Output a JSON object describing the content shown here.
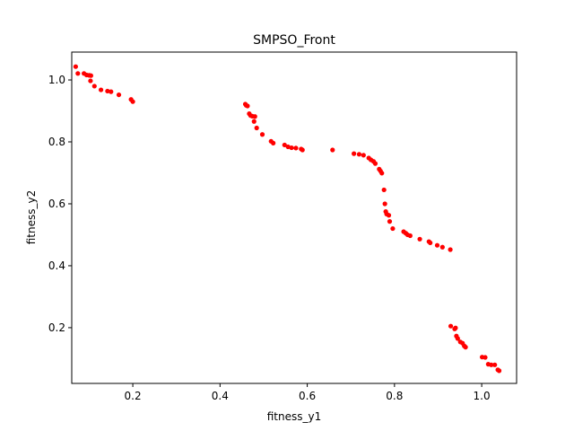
{
  "chart_data": {
    "type": "scatter",
    "title": "SMPSO_Front",
    "xlabel": "fitness_y1",
    "ylabel": "fitness_y2",
    "xlim": [
      0.06,
      1.08
    ],
    "ylim": [
      0.02,
      1.09
    ],
    "grid": false,
    "xticks": [
      0.2,
      0.4,
      0.6,
      0.8,
      1.0
    ],
    "xtick_labels": [
      "0.2",
      "0.4",
      "0.6",
      "0.8",
      "1.0"
    ],
    "yticks": [
      0.2,
      0.4,
      0.6,
      0.8,
      1.0
    ],
    "ytick_labels": [
      "0.2",
      "0.4",
      "0.6",
      "0.8",
      "1.0"
    ],
    "marker_color": "#ff0000",
    "points": [
      [
        0.069,
        1.043
      ],
      [
        0.074,
        1.021
      ],
      [
        0.088,
        1.021
      ],
      [
        0.094,
        1.016
      ],
      [
        0.1,
        1.015
      ],
      [
        0.104,
        1.014
      ],
      [
        0.103,
        0.997
      ],
      [
        0.112,
        0.98
      ],
      [
        0.127,
        0.968
      ],
      [
        0.142,
        0.964
      ],
      [
        0.15,
        0.962
      ],
      [
        0.168,
        0.952
      ],
      [
        0.196,
        0.937
      ],
      [
        0.2,
        0.93
      ],
      [
        0.458,
        0.922
      ],
      [
        0.46,
        0.918
      ],
      [
        0.463,
        0.916
      ],
      [
        0.467,
        0.891
      ],
      [
        0.47,
        0.885
      ],
      [
        0.474,
        0.883
      ],
      [
        0.48,
        0.882
      ],
      [
        0.478,
        0.866
      ],
      [
        0.484,
        0.845
      ],
      [
        0.497,
        0.824
      ],
      [
        0.517,
        0.802
      ],
      [
        0.522,
        0.796
      ],
      [
        0.548,
        0.79
      ],
      [
        0.556,
        0.784
      ],
      [
        0.564,
        0.781
      ],
      [
        0.574,
        0.78
      ],
      [
        0.586,
        0.777
      ],
      [
        0.589,
        0.774
      ],
      [
        0.658,
        0.774
      ],
      [
        0.707,
        0.762
      ],
      [
        0.719,
        0.76
      ],
      [
        0.729,
        0.757
      ],
      [
        0.741,
        0.748
      ],
      [
        0.746,
        0.742
      ],
      [
        0.752,
        0.737
      ],
      [
        0.756,
        0.73
      ],
      [
        0.765,
        0.712
      ],
      [
        0.768,
        0.706
      ],
      [
        0.771,
        0.699
      ],
      [
        0.776,
        0.645
      ],
      [
        0.778,
        0.6
      ],
      [
        0.78,
        0.575
      ],
      [
        0.782,
        0.567
      ],
      [
        0.787,
        0.563
      ],
      [
        0.789,
        0.543
      ],
      [
        0.796,
        0.52
      ],
      [
        0.821,
        0.51
      ],
      [
        0.826,
        0.505
      ],
      [
        0.83,
        0.5
      ],
      [
        0.836,
        0.497
      ],
      [
        0.858,
        0.486
      ],
      [
        0.879,
        0.478
      ],
      [
        0.882,
        0.474
      ],
      [
        0.898,
        0.466
      ],
      [
        0.91,
        0.46
      ],
      [
        0.928,
        0.452
      ],
      [
        0.929,
        0.205
      ],
      [
        0.94,
        0.199
      ],
      [
        0.938,
        0.196
      ],
      [
        0.942,
        0.173
      ],
      [
        0.945,
        0.165
      ],
      [
        0.951,
        0.154
      ],
      [
        0.956,
        0.15
      ],
      [
        0.96,
        0.141
      ],
      [
        0.963,
        0.137
      ],
      [
        1.001,
        0.105
      ],
      [
        1.008,
        0.104
      ],
      [
        1.015,
        0.082
      ],
      [
        1.022,
        0.08
      ],
      [
        1.03,
        0.08
      ],
      [
        1.037,
        0.064
      ],
      [
        1.04,
        0.061
      ]
    ]
  }
}
